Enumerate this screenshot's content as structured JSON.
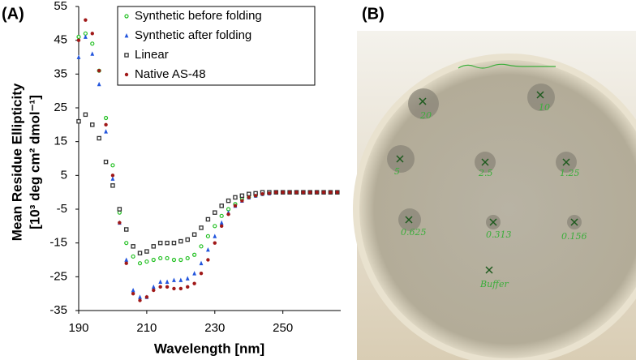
{
  "chart_data": {
    "type": "scatter",
    "y_label": [
      "Mean Residue Ellipticity",
      "[10³ deg cm² dmol⁻¹]"
    ],
    "x_label": "Wavelength [nm]",
    "x": [
      190,
      192,
      194,
      196,
      198,
      200,
      202,
      204,
      206,
      208,
      210,
      212,
      214,
      216,
      218,
      220,
      222,
      224,
      226,
      228,
      230,
      232,
      234,
      236,
      238,
      240,
      242,
      244,
      246,
      248,
      250,
      252,
      254,
      256,
      258,
      260,
      262,
      264,
      266
    ],
    "series": [
      {
        "name": "Synthetic before folding",
        "color": "#22c022",
        "marker": "circle-open",
        "values": [
          46,
          47,
          44,
          36,
          22,
          8,
          -6,
          -15,
          -19,
          -21,
          -20.5,
          -20,
          -19.5,
          -19.5,
          -20,
          -20,
          -19.5,
          -18.5,
          -16,
          -13,
          -10,
          -7,
          -5,
          -3.5,
          -2,
          -1.5,
          -1,
          -0.5,
          -0.3,
          0,
          0,
          0,
          0,
          0,
          0,
          0,
          0,
          0,
          0
        ]
      },
      {
        "name": "Synthetic after folding",
        "color": "#2255dd",
        "marker": "triangle",
        "values": [
          40,
          46,
          41,
          32,
          18,
          4,
          -9,
          -20,
          -29,
          -31,
          -31,
          -28,
          -26.5,
          -26.5,
          -26,
          -26,
          -25.5,
          -24,
          -21,
          -17,
          -13,
          -9,
          -6,
          -4,
          -2.5,
          -1.5,
          -1,
          -0.5,
          -0.3,
          0,
          0,
          0,
          0,
          0,
          0,
          0,
          0,
          0,
          0
        ]
      },
      {
        "name": "Linear",
        "color": "#333333",
        "marker": "square-open",
        "values": [
          21,
          23,
          20,
          16,
          9,
          2,
          -5,
          -11,
          -16,
          -18,
          -17.5,
          -16,
          -15,
          -15,
          -15,
          -14.5,
          -14,
          -12.5,
          -10.5,
          -8,
          -6,
          -4,
          -2.5,
          -1.5,
          -1,
          -0.5,
          -0.3,
          0,
          0,
          0,
          0,
          0,
          0,
          0,
          0,
          0,
          0,
          0,
          0
        ]
      },
      {
        "name": "Native AS-48",
        "color": "#a01818",
        "marker": "circle",
        "values": [
          45,
          51,
          47,
          36,
          20,
          5,
          -9,
          -21,
          -30,
          -32,
          -31,
          -29,
          -28,
          -28,
          -28.5,
          -28.5,
          -28,
          -27,
          -24,
          -20,
          -15,
          -10,
          -6.5,
          -4,
          -2.5,
          -1.5,
          -1,
          -0.5,
          -0.3,
          0,
          0,
          0,
          0,
          0,
          0,
          0,
          0,
          0,
          0
        ]
      }
    ],
    "xlim": [
      190,
      267
    ],
    "xticks": [
      190,
      210,
      230,
      250
    ],
    "ylim": [
      -35,
      55
    ],
    "yticks": [
      55,
      45,
      35,
      25,
      15,
      5,
      -5,
      -15,
      -25,
      -35
    ],
    "grid": false,
    "legend": "top"
  },
  "panel_labels": [
    "(A)",
    "(B)"
  ],
  "photo": {
    "labels": [
      "20",
      "10",
      "5",
      "2.5",
      "1.25",
      "0.625",
      "0.313",
      "0.156",
      "Buffer"
    ]
  }
}
